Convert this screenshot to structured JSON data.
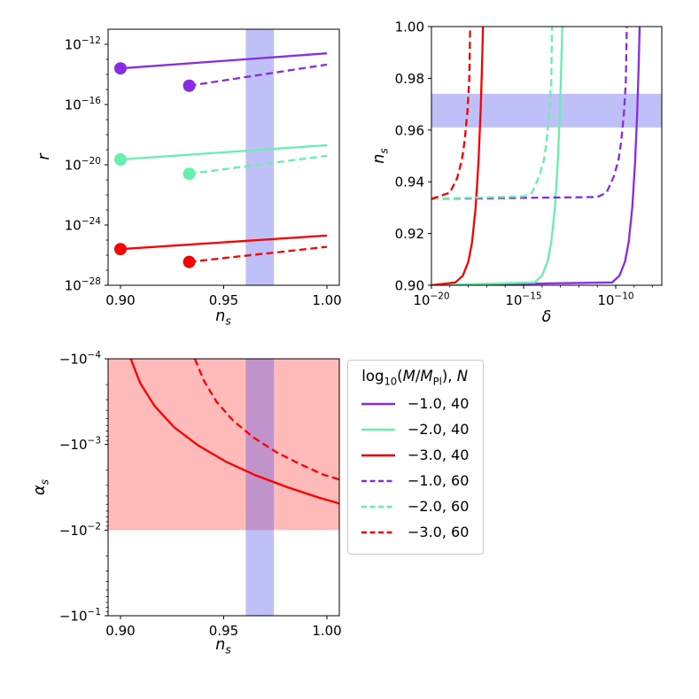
{
  "figure": {
    "background": "#ffffff",
    "palette": {
      "purple": "#8a2be2",
      "green": "#66efae",
      "red": "#ff0000",
      "band_blue": "rgba(75,75,235,0.35)",
      "band_red": "rgba(255,45,45,0.33)",
      "axis": "#000000"
    },
    "legend": {
      "title_rich": [
        {
          "t": "log"
        },
        {
          "t": "10",
          "s": "sub"
        },
        {
          "t": "("
        },
        {
          "t": "M",
          "i": true
        },
        {
          "t": "/"
        },
        {
          "t": "M",
          "i": true
        },
        {
          "t": "Pl",
          "s": "sub"
        },
        {
          "t": "), "
        },
        {
          "t": "N",
          "i": true
        }
      ],
      "entries": [
        {
          "label": "−1.0, 40",
          "color": "purple",
          "dash": false
        },
        {
          "label": "−2.0, 40",
          "color": "green",
          "dash": false
        },
        {
          "label": "−3.0, 40",
          "color": "red",
          "dash": false
        },
        {
          "label": "−1.0, 60",
          "color": "purple",
          "dash": true
        },
        {
          "label": "−2.0, 60",
          "color": "green",
          "dash": true
        },
        {
          "label": "−3.0, 60",
          "color": "red",
          "dash": true
        }
      ]
    }
  },
  "chart_data": [
    {
      "name": "r-vs-ns",
      "type": "line",
      "x_space": "n_s (linear)",
      "y_space": "log10(r)",
      "xlim": [
        0.894,
        1.006
      ],
      "ylim": [
        -28,
        -11
      ],
      "xlabel_rich": [
        {
          "t": "n",
          "i": true
        },
        {
          "t": "s",
          "i": true,
          "s": "sub"
        }
      ],
      "ylabel_rich": [
        {
          "t": "r",
          "i": true
        }
      ],
      "xticks": [
        {
          "v": 0.9,
          "label": "0.90"
        },
        {
          "v": 0.95,
          "label": "0.95"
        },
        {
          "v": 1.0,
          "label": "1.00"
        }
      ],
      "yticks": [
        {
          "v": -12,
          "fmt": "pow10",
          "exp": "−12"
        },
        {
          "v": -16,
          "fmt": "pow10",
          "exp": "−16"
        },
        {
          "v": -20,
          "fmt": "pow10",
          "exp": "−20"
        },
        {
          "v": -24,
          "fmt": "pow10",
          "exp": "−24"
        },
        {
          "v": -28,
          "fmt": "pow10",
          "exp": "−28"
        }
      ],
      "yminor": [
        -27,
        -26,
        -25,
        -23,
        -22,
        -21,
        -19,
        -18,
        -17,
        -15,
        -14,
        -13
      ],
      "bands": [
        {
          "axis": "x",
          "from": 0.9607,
          "to": 0.9743,
          "color": "band_blue"
        }
      ],
      "series": [
        {
          "key": "M-1.0-N40",
          "color": "purple",
          "dash": false,
          "marker_first": true,
          "points": [
            [
              0.9,
              -13.6
            ],
            [
              1.0,
              -12.6
            ]
          ]
        },
        {
          "key": "M-2.0-N40",
          "color": "green",
          "dash": false,
          "marker_first": true,
          "points": [
            [
              0.9,
              -19.65
            ],
            [
              1.0,
              -18.7
            ]
          ]
        },
        {
          "key": "M-3.0-N40",
          "color": "red",
          "dash": false,
          "marker_first": true,
          "points": [
            [
              0.9,
              -25.6
            ],
            [
              1.0,
              -24.7
            ]
          ]
        },
        {
          "key": "M-1.0-N60",
          "color": "purple",
          "dash": true,
          "marker_first": true,
          "points": [
            [
              0.9333,
              -14.75
            ],
            [
              1.0,
              -13.35
            ]
          ]
        },
        {
          "key": "M-2.0-N60",
          "color": "green",
          "dash": true,
          "marker_first": true,
          "points": [
            [
              0.9333,
              -20.6
            ],
            [
              1.0,
              -19.4
            ]
          ]
        },
        {
          "key": "M-3.0-N60",
          "color": "red",
          "dash": true,
          "marker_first": true,
          "points": [
            [
              0.9333,
              -26.45
            ],
            [
              1.0,
              -25.45
            ]
          ]
        }
      ]
    },
    {
      "name": "ns-vs-delta",
      "type": "line",
      "x_space": "log10(delta)",
      "y_space": "n_s (linear)",
      "xlim": [
        -20,
        -7.5
      ],
      "ylim": [
        0.9,
        1.0
      ],
      "xlabel_rich": [
        {
          "t": "δ",
          "i": true
        }
      ],
      "ylabel_rich": [
        {
          "t": "n",
          "i": true
        },
        {
          "t": "s",
          "i": true,
          "s": "sub"
        }
      ],
      "xticks": [
        {
          "v": -20,
          "fmt": "pow10",
          "exp": "−20"
        },
        {
          "v": -15,
          "fmt": "pow10",
          "exp": "−15"
        },
        {
          "v": -10,
          "fmt": "pow10",
          "exp": "−10"
        }
      ],
      "xminor": [
        -19,
        -18,
        -17,
        -16,
        -14,
        -13,
        -12,
        -11,
        -9,
        -8
      ],
      "yticks": [
        {
          "v": 0.9,
          "label": "0.90"
        },
        {
          "v": 0.92,
          "label": "0.92"
        },
        {
          "v": 0.94,
          "label": "0.94"
        },
        {
          "v": 0.96,
          "label": "0.96"
        },
        {
          "v": 0.98,
          "label": "0.98"
        },
        {
          "v": 1.0,
          "label": "1.00"
        }
      ],
      "bands": [
        {
          "axis": "y",
          "from": 0.961,
          "to": 0.974,
          "color": "band_blue"
        }
      ],
      "series": [
        {
          "key": "M-1.0-N40",
          "color": "purple",
          "dash": false,
          "points": [
            [
              -20,
              0.9
            ],
            [
              -10.2,
              0.9011
            ],
            [
              -9.8,
              0.9037
            ],
            [
              -9.5,
              0.9091
            ],
            [
              -9.3,
              0.9165
            ],
            [
              -9.1,
              0.9301
            ],
            [
              -8.95,
              0.9472
            ],
            [
              -8.83,
              0.9672
            ],
            [
              -8.76,
              0.9838
            ],
            [
              -8.7,
              1.0
            ]
          ]
        },
        {
          "key": "M-2.0-N40",
          "color": "green",
          "dash": false,
          "points": [
            [
              -20,
              0.9
            ],
            [
              -14.4,
              0.9011
            ],
            [
              -14.0,
              0.9037
            ],
            [
              -13.7,
              0.9091
            ],
            [
              -13.5,
              0.9165
            ],
            [
              -13.3,
              0.9301
            ],
            [
              -13.15,
              0.9472
            ],
            [
              -13.03,
              0.9672
            ],
            [
              -12.96,
              0.9838
            ],
            [
              -12.9,
              1.0
            ]
          ]
        },
        {
          "key": "M-3.0-N40",
          "color": "red",
          "dash": false,
          "points": [
            [
              -20,
              0.9
            ],
            [
              -18.7,
              0.9011
            ],
            [
              -18.3,
              0.9037
            ],
            [
              -18.0,
              0.9091
            ],
            [
              -17.8,
              0.9165
            ],
            [
              -17.6,
              0.9301
            ],
            [
              -17.45,
              0.9472
            ],
            [
              -17.33,
              0.9672
            ],
            [
              -17.26,
              0.9838
            ],
            [
              -17.2,
              1.0
            ]
          ]
        },
        {
          "key": "M-1.0-N60",
          "color": "purple",
          "dash": true,
          "points": [
            [
              -20,
              0.9334
            ],
            [
              -11,
              0.9341
            ],
            [
              -10.5,
              0.9358
            ],
            [
              -10.1,
              0.9421
            ],
            [
              -9.85,
              0.9484
            ],
            [
              -9.7,
              0.9556
            ],
            [
              -9.55,
              0.9671
            ],
            [
              -9.45,
              0.979
            ],
            [
              -9.4,
              1.0
            ]
          ]
        },
        {
          "key": "M-2.0-N60",
          "color": "green",
          "dash": true,
          "points": [
            [
              -20,
              0.9334
            ],
            [
              -15,
              0.9344
            ],
            [
              -14.55,
              0.9358
            ],
            [
              -14.15,
              0.9421
            ],
            [
              -13.9,
              0.9484
            ],
            [
              -13.75,
              0.9556
            ],
            [
              -13.6,
              0.9671
            ],
            [
              -13.5,
              0.979
            ],
            [
              -13.45,
              1.0
            ]
          ]
        },
        {
          "key": "M-3.0-N60",
          "color": "red",
          "dash": true,
          "points": [
            [
              -20,
              0.9334
            ],
            [
              -19,
              0.9358
            ],
            [
              -18.6,
              0.9415
            ],
            [
              -18.35,
              0.9484
            ],
            [
              -18.2,
              0.9556
            ],
            [
              -18.05,
              0.9671
            ],
            [
              -17.95,
              0.979
            ],
            [
              -17.9,
              1.0
            ]
          ]
        }
      ]
    },
    {
      "name": "alpha-vs-ns",
      "type": "line",
      "x_space": "n_s (linear)",
      "y_space": "log10(-alpha_s), axis reversed (−10^−4 at top, −10^−1 at bottom)",
      "xlim": [
        0.894,
        1.006
      ],
      "ylim": [
        -1,
        -4
      ],
      "xlabel_rich": [
        {
          "t": "n",
          "i": true
        },
        {
          "t": "s",
          "i": true,
          "s": "sub"
        }
      ],
      "ylabel_rich": [
        {
          "t": "α",
          "i": true
        },
        {
          "t": "s",
          "i": true,
          "s": "sub"
        }
      ],
      "xticks": [
        {
          "v": 0.9,
          "label": "0.90"
        },
        {
          "v": 0.95,
          "label": "0.95"
        },
        {
          "v": 1.0,
          "label": "1.00"
        }
      ],
      "yticks": [
        {
          "v": -4,
          "fmt": "negpow10",
          "exp": "−4"
        },
        {
          "v": -3,
          "fmt": "negpow10",
          "exp": "−3"
        },
        {
          "v": -2,
          "fmt": "negpow10",
          "exp": "−2"
        },
        {
          "v": -1,
          "fmt": "negpow10",
          "exp": "−1"
        }
      ],
      "yminor": [
        -3.699,
        -3.523,
        -3.398,
        -3.301,
        -3.222,
        -3.155,
        -3.097,
        -3.046,
        -2.699,
        -2.523,
        -2.398,
        -2.301,
        -2.222,
        -2.155,
        -2.097,
        -2.046,
        -1.699,
        -1.523,
        -1.398,
        -1.301,
        -1.222,
        -1.155,
        -1.097,
        -1.046
      ],
      "bands": [
        {
          "axis": "y",
          "from": -4,
          "to": -2,
          "color": "band_red"
        },
        {
          "axis": "x",
          "from": 0.9607,
          "to": 0.9743,
          "color": "band_blue"
        }
      ],
      "series": [
        {
          "key": "M-3.0-N40",
          "color": "red",
          "dash": false,
          "points": [
            [
              0.905,
              -4.0
            ],
            [
              0.9095,
              -3.72
            ],
            [
              0.9165,
              -3.45
            ],
            [
              0.926,
              -3.2
            ],
            [
              0.9375,
              -2.99
            ],
            [
              0.951,
              -2.8
            ],
            [
              0.9655,
              -2.64
            ],
            [
              0.981,
              -2.5
            ],
            [
              0.996,
              -2.38
            ],
            [
              1.006,
              -2.31
            ]
          ]
        },
        {
          "key": "M-3.0-N60",
          "color": "red",
          "dash": true,
          "points": [
            [
              0.936,
              -4.0
            ],
            [
              0.9405,
              -3.74
            ],
            [
              0.9465,
              -3.5
            ],
            [
              0.9545,
              -3.28
            ],
            [
              0.9645,
              -3.08
            ],
            [
              0.9755,
              -2.91
            ],
            [
              0.987,
              -2.77
            ],
            [
              0.998,
              -2.65
            ],
            [
              1.006,
              -2.59
            ]
          ]
        }
      ]
    }
  ]
}
